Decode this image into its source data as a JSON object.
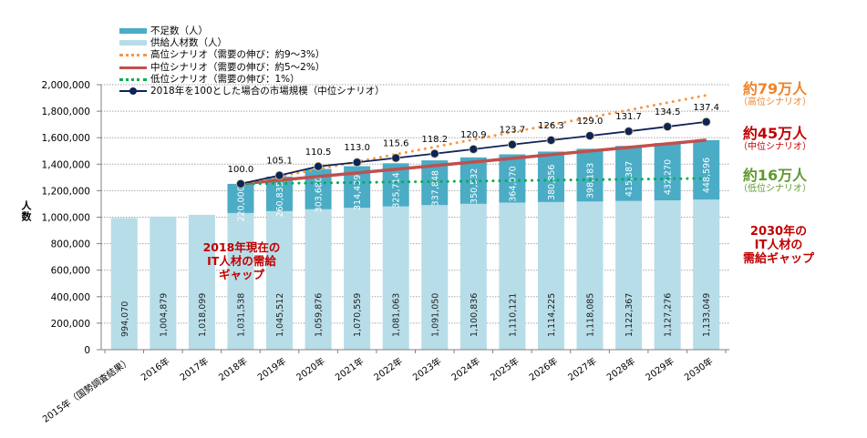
{
  "chart_data": {
    "type": "bar",
    "stacked": true,
    "title": "",
    "xlabel": "",
    "ylabel": "人数",
    "ylim": [
      0,
      2000000
    ],
    "yticks": [
      0,
      200000,
      400000,
      600000,
      800000,
      1000000,
      1200000,
      1400000,
      1600000,
      1800000,
      2000000
    ],
    "ytick_labels": [
      "0",
      "200,000",
      "400,000",
      "600,000",
      "800,000",
      "1,000,000",
      "1,200,000",
      "1,400,000",
      "1,600,000",
      "1,800,000",
      "2,000,000"
    ],
    "grid": true,
    "categories": [
      "2015年（国勢調査結果）",
      "2016年",
      "2017年",
      "2018年",
      "2019年",
      "2020年",
      "2021年",
      "2022年",
      "2023年",
      "2024年",
      "2025年",
      "2026年",
      "2027年",
      "2028年",
      "2029年",
      "2030年"
    ],
    "series": [
      {
        "name": "供給人材数（人）",
        "kind": "bar",
        "color": "#b7dde8",
        "values": [
          994070,
          1004879,
          1018099,
          1031538,
          1045512,
          1059876,
          1070559,
          1081063,
          1091050,
          1100836,
          1110121,
          1114225,
          1118085,
          1122367,
          1127276,
          1133049
        ],
        "labels": [
          "994,070",
          "1,004,879",
          "1,018,099",
          "1,031,538",
          "1,045,512",
          "1,059,876",
          "1,070,559",
          "1,081,063",
          "1,091,050",
          "1,100,836",
          "1,110,121",
          "1,114,225",
          "1,118,085",
          "1,122,367",
          "1,127,276",
          "1,133,049"
        ]
      },
      {
        "name": "不足数（人）",
        "kind": "bar",
        "color": "#4bacc6",
        "values": [
          null,
          null,
          null,
          220000,
          260835,
          303680,
          314439,
          325714,
          337848,
          350532,
          364070,
          380856,
          398183,
          415387,
          432270,
          448596
        ],
        "labels": [
          "",
          "",
          "",
          "220,000",
          "260,835",
          "303,680",
          "314,439",
          "325,714",
          "337,848",
          "350,532",
          "364,070",
          "380,856",
          "398,183",
          "415,387",
          "432,270",
          "448,596"
        ]
      },
      {
        "name": "高位シナリオ（需要の伸び：約9〜3%）",
        "kind": "line-dotted",
        "color": "#f79646",
        "values": [
          null,
          null,
          null,
          1251538,
          null,
          null,
          null,
          null,
          null,
          null,
          null,
          null,
          null,
          null,
          null,
          1920000
        ]
      },
      {
        "name": "中位シナリオ（需要の伸び：約5〜2%）",
        "kind": "line",
        "color": "#c0504d",
        "values": [
          null,
          null,
          null,
          1251538,
          null,
          null,
          null,
          null,
          null,
          null,
          null,
          null,
          null,
          null,
          null,
          1581645
        ]
      },
      {
        "name": "低位シナリオ（需要の伸び：1%）",
        "kind": "line-dotted",
        "color": "#00b050",
        "values": [
          null,
          null,
          null,
          1251538,
          null,
          null,
          null,
          null,
          null,
          null,
          null,
          null,
          null,
          null,
          null,
          1293000
        ]
      },
      {
        "name": "2018年を100とした場合の市場規模（中位シナリオ）",
        "kind": "line-marker",
        "color": "#0f2259",
        "index_values": [
          null,
          null,
          null,
          100.0,
          105.1,
          110.5,
          113.0,
          115.6,
          118.2,
          120.9,
          123.7,
          126.3,
          129.0,
          131.7,
          134.5,
          137.4
        ],
        "index_labels": [
          "",
          "",
          "",
          "100.0",
          "105.1",
          "110.5",
          "113.0",
          "115.6",
          "118.2",
          "120.9",
          "123.7",
          "126.3",
          "129.0",
          "131.7",
          "134.5",
          "137.4"
        ]
      }
    ],
    "legend": {
      "placement": "top-left",
      "items": [
        {
          "label": "不足数（人）",
          "kind": "rect",
          "color": "#4bacc6"
        },
        {
          "label": "供給人材数（人）",
          "kind": "rect",
          "color": "#b7dde8"
        },
        {
          "label": "高位シナリオ（需要の伸び：約9〜3%）",
          "kind": "dotted",
          "color": "#f79646"
        },
        {
          "label": "中位シナリオ（需要の伸び：約5〜2%）",
          "kind": "line",
          "color": "#c0504d"
        },
        {
          "label": "低位シナリオ（需要の伸び：1%）",
          "kind": "dotted",
          "color": "#00b050"
        },
        {
          "label": "2018年を100とした場合の市場規模（中位シナリオ）",
          "kind": "marker-line",
          "color": "#0f2259"
        }
      ]
    },
    "annotations": {
      "gap_2018": [
        "2018年現在の",
        "IT人材の需給",
        "ギャップ"
      ],
      "gap_2030": [
        "2030年の",
        "IT人材の",
        "需給ギャップ"
      ],
      "high": {
        "big": "約79万人",
        "small": "（高位シナリオ）",
        "color": "#f0832a"
      },
      "mid": {
        "big": "約45万人",
        "small": "（中位シナリオ）",
        "color": "#c00000"
      },
      "low": {
        "big": "約16万人",
        "small": "（低位シナリオ）",
        "color": "#5e9a2d"
      }
    }
  }
}
